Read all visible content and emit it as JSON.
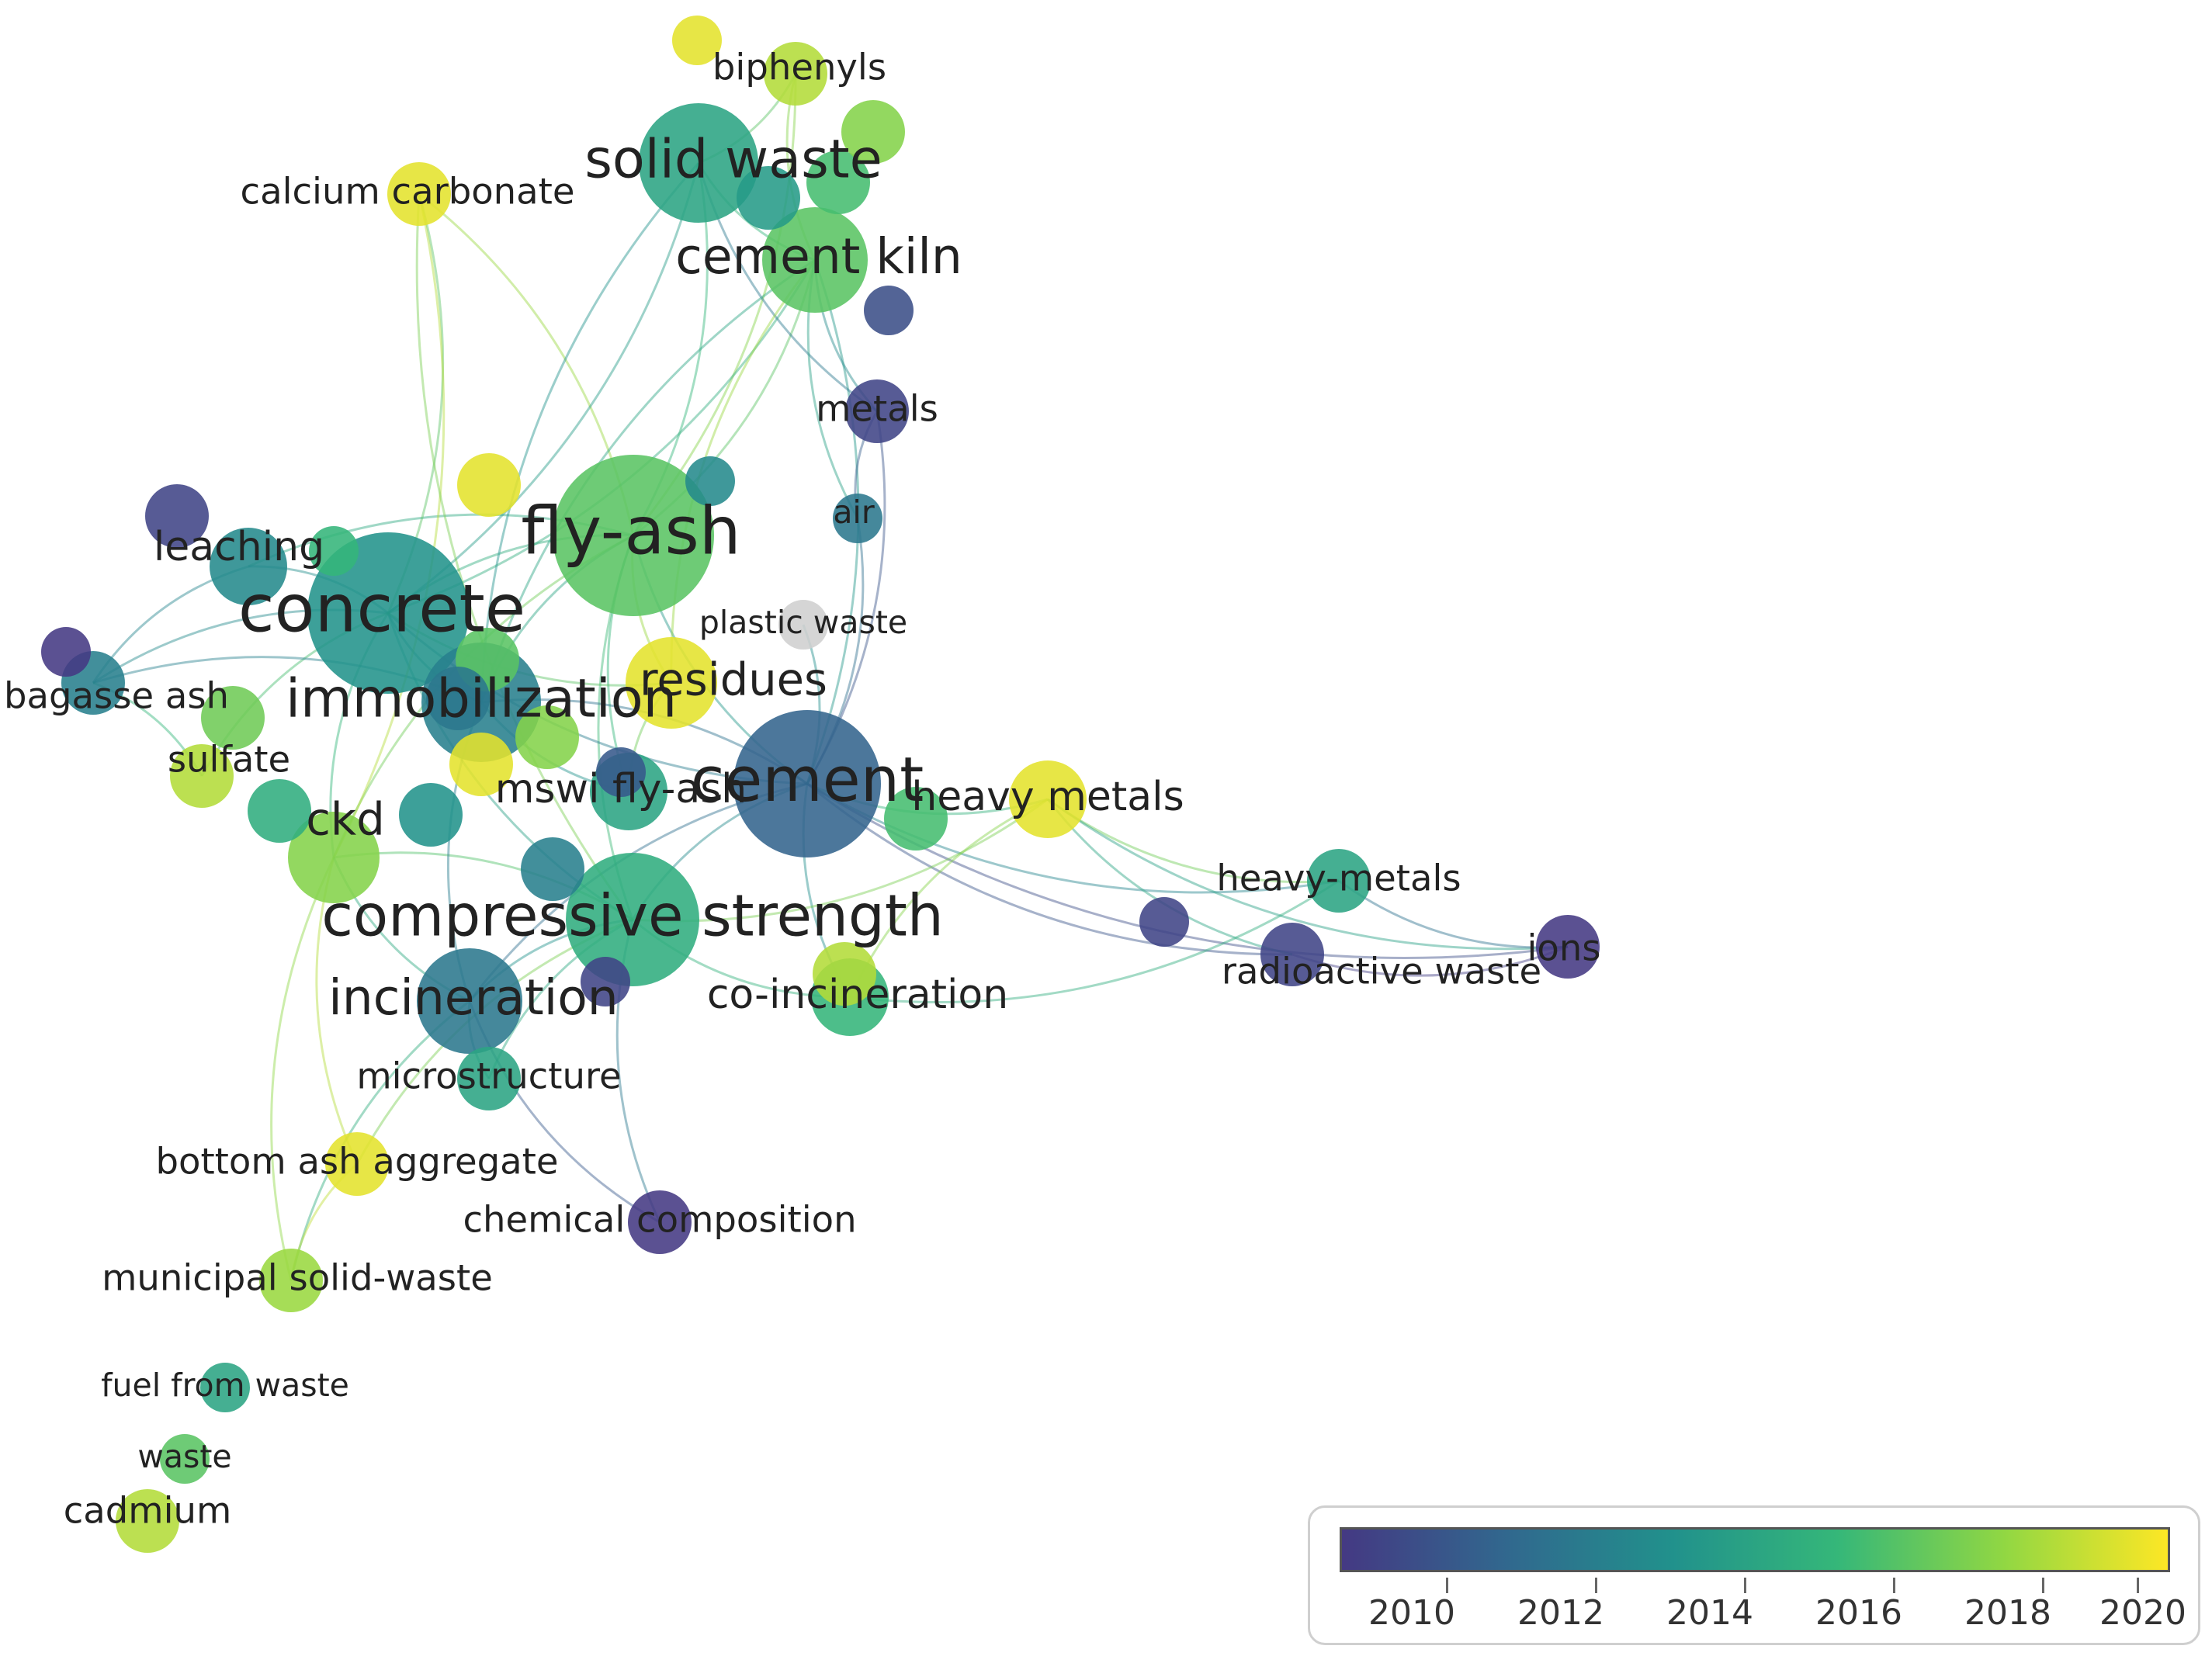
{
  "colors": {
    "scale": [
      "#443983",
      "#31688e",
      "#21918c",
      "#35b779",
      "#90d743",
      "#fde725"
    ],
    "no_year": "#cfcfcf"
  },
  "nodes": [
    {
      "id": "fly-ash",
      "label": "fly-ash",
      "year": 2017.0,
      "weight": 10
    },
    {
      "id": "concrete",
      "label": "concrete",
      "year": 2014.0,
      "weight": 10
    },
    {
      "id": "cement",
      "label": "cement",
      "year": 2011.5,
      "weight": 9
    },
    {
      "id": "compressive-strength",
      "label": "compressive strength",
      "year": 2015.5,
      "weight": 8
    },
    {
      "id": "solid-waste",
      "label": "solid waste",
      "year": 2015.0,
      "weight": 7
    },
    {
      "id": "immobilization",
      "label": "immobilization",
      "year": 2013.0,
      "weight": 7
    },
    {
      "id": "cement-kiln",
      "label": "cement kiln",
      "year": 2017.0,
      "weight": 6
    },
    {
      "id": "incineration",
      "label": "incineration",
      "year": 2012.5,
      "weight": 6
    },
    {
      "id": "residues",
      "label": "residues",
      "year": 2020.0,
      "weight": 5
    },
    {
      "id": "mswi-fly-ash",
      "label": "mswi fly-ash",
      "year": 2015.0,
      "weight": 4
    },
    {
      "id": "heavy-metals",
      "label": "heavy metals",
      "year": 2020.0,
      "weight": 4
    },
    {
      "id": "ckd",
      "label": "ckd",
      "year": 2018.0,
      "weight": 5
    },
    {
      "id": "leaching",
      "label": "leaching",
      "year": 2013.5,
      "weight": 4
    },
    {
      "id": "sulfate",
      "label": "sulfate",
      "year": 2019.0,
      "weight": 3
    },
    {
      "id": "bagasse-ash",
      "label": "bagasse ash",
      "year": 2013.0,
      "weight": 3
    },
    {
      "id": "calcium-carbonate",
      "label": "calcium carbonate",
      "year": 2020.0,
      "weight": 3
    },
    {
      "id": "biphenyls",
      "label": "biphenyls",
      "year": 2019.0,
      "weight": 3
    },
    {
      "id": "metals",
      "label": "metals",
      "year": 2010.0,
      "weight": 3
    },
    {
      "id": "air",
      "label": "air",
      "year": 2012.5,
      "weight": 2
    },
    {
      "id": "plastic-waste",
      "label": "plastic waste",
      "year": null,
      "weight": 2
    },
    {
      "id": "heavy-metals-2",
      "label": "heavy-metals",
      "year": 2015.0,
      "weight": 3
    },
    {
      "id": "radioactive-waste",
      "label": "radioactive waste",
      "year": 2010.0,
      "weight": 3
    },
    {
      "id": "ions",
      "label": "ions",
      "year": 2009.5,
      "weight": 3
    },
    {
      "id": "co-incineration",
      "label": "co-incineration",
      "year": 2016.0,
      "weight": 4
    },
    {
      "id": "microstructure",
      "label": "microstructure",
      "year": 2015.0,
      "weight": 3
    },
    {
      "id": "bottom-ash-aggregate",
      "label": "bottom ash aggregate",
      "year": 2020.0,
      "weight": 3
    },
    {
      "id": "chemical-composition",
      "label": "chemical composition",
      "year": 2009.5,
      "weight": 3
    },
    {
      "id": "municipal-solid-waste",
      "label": "municipal solid-waste",
      "year": 2018.5,
      "weight": 3
    },
    {
      "id": "fuel-from-waste",
      "label": "fuel from waste",
      "year": 2015.0,
      "weight": 2
    },
    {
      "id": "waste",
      "label": "waste",
      "year": 2017.0,
      "weight": 2
    },
    {
      "id": "cadmium",
      "label": "cadmium",
      "year": 2019.0,
      "weight": 3
    },
    {
      "id": "n-a",
      "label": "",
      "year": 2020.0,
      "weight": 2
    },
    {
      "id": "n-b",
      "label": "",
      "year": 2016.5,
      "weight": 3
    },
    {
      "id": "n-c",
      "label": "",
      "year": 2018.0,
      "weight": 3
    },
    {
      "id": "n-d",
      "label": "",
      "year": 2014.5,
      "weight": 3
    },
    {
      "id": "n-e",
      "label": "",
      "year": 2010.5,
      "weight": 2
    },
    {
      "id": "n-f",
      "label": "",
      "year": 2013.5,
      "weight": 2
    },
    {
      "id": "n-g",
      "label": "",
      "year": 2020.0,
      "weight": 3
    },
    {
      "id": "n-h",
      "label": "",
      "year": 2010.0,
      "weight": 3
    },
    {
      "id": "n-i",
      "label": "",
      "year": 2016.0,
      "weight": 2
    },
    {
      "id": "n-j",
      "label": "",
      "year": 2017.0,
      "weight": 3
    },
    {
      "id": "n-k",
      "label": "",
      "year": 2012.5,
      "weight": 3
    },
    {
      "id": "n-l",
      "label": "",
      "year": 2018.0,
      "weight": 3
    },
    {
      "id": "n-m",
      "label": "",
      "year": 2014.0,
      "weight": 3
    },
    {
      "id": "n-n",
      "label": "",
      "year": 2020.0,
      "weight": 3
    },
    {
      "id": "n-o",
      "label": "",
      "year": 2011.0,
      "weight": 2
    },
    {
      "id": "n-p",
      "label": "",
      "year": 2010.0,
      "weight": 2
    },
    {
      "id": "n-q",
      "label": "",
      "year": 2009.5,
      "weight": 2
    },
    {
      "id": "n-r",
      "label": "",
      "year": 2013.0,
      "weight": 3
    },
    {
      "id": "n-s",
      "label": "",
      "year": 2016.5,
      "weight": 3
    },
    {
      "id": "n-t",
      "label": "",
      "year": 2019.0,
      "weight": 3
    },
    {
      "id": "n-u",
      "label": "",
      "year": 2010.0,
      "weight": 2
    },
    {
      "id": "n-v",
      "label": "",
      "year": 2015.5,
      "weight": 3
    },
    {
      "id": "n-w",
      "label": "",
      "year": 2017.5,
      "weight": 3
    }
  ],
  "edges": [
    [
      "fly-ash",
      "concrete"
    ],
    [
      "fly-ash",
      "cement"
    ],
    [
      "fly-ash",
      "compressive-strength"
    ],
    [
      "fly-ash",
      "solid-waste"
    ],
    [
      "fly-ash",
      "immobilization"
    ],
    [
      "fly-ash",
      "residues"
    ],
    [
      "fly-ash",
      "cement-kiln"
    ],
    [
      "fly-ash",
      "calcium-carbonate"
    ],
    [
      "fly-ash",
      "leaching"
    ],
    [
      "fly-ash",
      "ckd"
    ],
    [
      "fly-ash",
      "mswi-fly-ash"
    ],
    [
      "fly-ash",
      "biphenyls"
    ],
    [
      "concrete",
      "compressive-strength"
    ],
    [
      "concrete",
      "immobilization"
    ],
    [
      "concrete",
      "cement"
    ],
    [
      "concrete",
      "leaching"
    ],
    [
      "concrete",
      "bagasse-ash"
    ],
    [
      "concrete",
      "sulfate"
    ],
    [
      "concrete",
      "calcium-carbonate"
    ],
    [
      "concrete",
      "solid-waste"
    ],
    [
      "concrete",
      "ckd"
    ],
    [
      "concrete",
      "cement-kiln"
    ],
    [
      "concrete",
      "residues"
    ],
    [
      "cement",
      "heavy-metals"
    ],
    [
      "cement",
      "heavy-metals-2"
    ],
    [
      "cement",
      "radioactive-waste"
    ],
    [
      "cement",
      "ions"
    ],
    [
      "cement",
      "compressive-strength"
    ],
    [
      "cement",
      "immobilization"
    ],
    [
      "cement",
      "air"
    ],
    [
      "cement",
      "metals"
    ],
    [
      "cement",
      "co-incineration"
    ],
    [
      "cement",
      "plastic-waste"
    ],
    [
      "cement",
      "cement-kiln"
    ],
    [
      "cement",
      "incineration"
    ],
    [
      "compressive-strength",
      "incineration"
    ],
    [
      "compressive-strength",
      "bottom-ash-aggregate"
    ],
    [
      "compressive-strength",
      "microstructure"
    ],
    [
      "compressive-strength",
      "chemical-composition"
    ],
    [
      "compressive-strength",
      "ckd"
    ],
    [
      "compressive-strength",
      "co-incineration"
    ],
    [
      "compressive-strength",
      "heavy-metals"
    ],
    [
      "solid-waste",
      "cement-kiln"
    ],
    [
      "solid-waste",
      "biphenyls"
    ],
    [
      "solid-waste",
      "immobilization"
    ],
    [
      "solid-waste",
      "metals"
    ],
    [
      "cement-kiln",
      "metals"
    ],
    [
      "cement-kiln",
      "air"
    ],
    [
      "cement-kiln",
      "immobilization"
    ],
    [
      "cement-kiln",
      "residues"
    ],
    [
      "immobilization",
      "mswi-fly-ash"
    ],
    [
      "immobilization",
      "incineration"
    ],
    [
      "immobilization",
      "bagasse-ash"
    ],
    [
      "ckd",
      "municipal-solid-waste"
    ],
    [
      "ckd",
      "bottom-ash-aggregate"
    ],
    [
      "ckd",
      "incineration"
    ],
    [
      "ckd",
      "calcium-carbonate"
    ],
    [
      "incineration",
      "microstructure"
    ],
    [
      "incineration",
      "municipal-solid-waste"
    ],
    [
      "incineration",
      "chemical-composition"
    ],
    [
      "heavy-metals",
      "heavy-metals-2"
    ],
    [
      "heavy-metals",
      "radioactive-waste"
    ],
    [
      "heavy-metals",
      "ions"
    ],
    [
      "heavy-metals-2",
      "ions"
    ],
    [
      "radioactive-waste",
      "ions"
    ],
    [
      "heavy-metals",
      "co-incineration"
    ],
    [
      "co-incineration",
      "heavy-metals-2"
    ],
    [
      "bottom-ash-aggregate",
      "municipal-solid-waste"
    ],
    [
      "leaching",
      "bagasse-ash"
    ],
    [
      "sulfate",
      "bagasse-ash"
    ],
    [
      "metals",
      "air"
    ],
    [
      "residues",
      "mswi-fly-ash"
    ],
    [
      "calcium-carbonate",
      "compressive-strength"
    ],
    [
      "biphenyls",
      "cement-kiln"
    ]
  ],
  "legend": {
    "ticks": [
      "2010",
      "2012",
      "2014",
      "2016",
      "2018",
      "2020"
    ]
  }
}
